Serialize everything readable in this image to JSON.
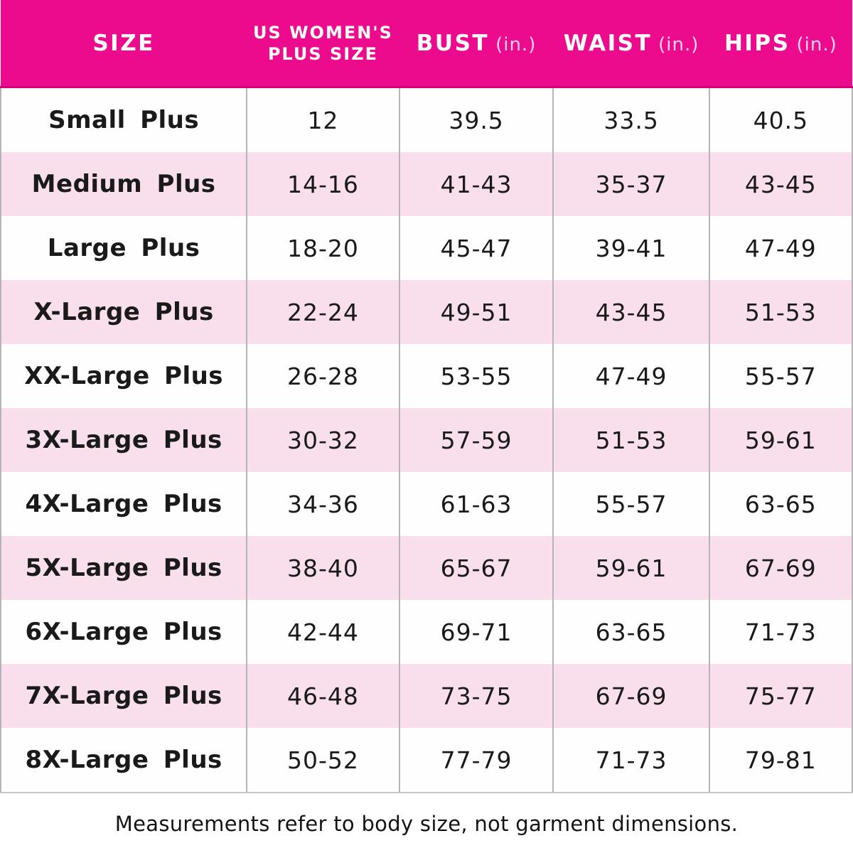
{
  "colors": {
    "header_bg": "#EC0B8C",
    "header_bottom_edge": "#D6017A",
    "header_text": "#FFFFFF",
    "stripe_pink": "#F8DFEB",
    "row_white": "#FEFEFE",
    "body_text": "#1A1A1A",
    "border_gray": "#B5B5B5"
  },
  "header": {
    "columns": [
      {
        "label": "SIZE"
      },
      {
        "line1": "US WOMEN'S",
        "line2": "PLUS SIZE"
      },
      {
        "label": "BUST",
        "unit": "(in.)"
      },
      {
        "label": "WAIST",
        "unit": "(in.)"
      },
      {
        "label": "HIPS",
        "unit": "(in.)"
      }
    ]
  },
  "rows": [
    {
      "size": "Small Plus",
      "us_plus_size": "12",
      "bust": "39.5",
      "waist": "33.5",
      "hips": "40.5"
    },
    {
      "size": "Medium Plus",
      "us_plus_size": "14-16",
      "bust": "41-43",
      "waist": "35-37",
      "hips": "43-45"
    },
    {
      "size": "Large Plus",
      "us_plus_size": "18-20",
      "bust": "45-47",
      "waist": "39-41",
      "hips": "47-49"
    },
    {
      "size": "X-Large Plus",
      "us_plus_size": "22-24",
      "bust": "49-51",
      "waist": "43-45",
      "hips": "51-53"
    },
    {
      "size": "XX-Large Plus",
      "us_plus_size": "26-28",
      "bust": "53-55",
      "waist": "47-49",
      "hips": "55-57"
    },
    {
      "size": "3X-Large Plus",
      "us_plus_size": "30-32",
      "bust": "57-59",
      "waist": "51-53",
      "hips": "59-61"
    },
    {
      "size": "4X-Large Plus",
      "us_plus_size": "34-36",
      "bust": "61-63",
      "waist": "55-57",
      "hips": "63-65"
    },
    {
      "size": "5X-Large Plus",
      "us_plus_size": "38-40",
      "bust": "65-67",
      "waist": "59-61",
      "hips": "67-69"
    },
    {
      "size": "6X-Large Plus",
      "us_plus_size": "42-44",
      "bust": "69-71",
      "waist": "63-65",
      "hips": "71-73"
    },
    {
      "size": "7X-Large Plus",
      "us_plus_size": "46-48",
      "bust": "73-75",
      "waist": "67-69",
      "hips": "75-77"
    },
    {
      "size": "8X-Large Plus",
      "us_plus_size": "50-52",
      "bust": "77-79",
      "waist": "71-73",
      "hips": "79-81"
    }
  ],
  "footnote": "Measurements refer to body size, not garment dimensions.",
  "chart_data": {
    "type": "table",
    "columns": [
      "SIZE",
      "US WOMEN'S PLUS SIZE",
      "BUST (in.)",
      "WAIST (in.)",
      "HIPS (in.)"
    ],
    "rows": [
      [
        "Small Plus",
        "12",
        "39.5",
        "33.5",
        "40.5"
      ],
      [
        "Medium Plus",
        "14-16",
        "41-43",
        "35-37",
        "43-45"
      ],
      [
        "Large Plus",
        "18-20",
        "45-47",
        "39-41",
        "47-49"
      ],
      [
        "X-Large Plus",
        "22-24",
        "49-51",
        "43-45",
        "51-53"
      ],
      [
        "XX-Large Plus",
        "26-28",
        "53-55",
        "47-49",
        "55-57"
      ],
      [
        "3X-Large Plus",
        "30-32",
        "57-59",
        "51-53",
        "59-61"
      ],
      [
        "4X-Large Plus",
        "34-36",
        "61-63",
        "55-57",
        "63-65"
      ],
      [
        "5X-Large Plus",
        "38-40",
        "65-67",
        "59-61",
        "67-69"
      ],
      [
        "6X-Large Plus",
        "42-44",
        "69-71",
        "63-65",
        "71-73"
      ],
      [
        "7X-Large Plus",
        "46-48",
        "73-75",
        "67-69",
        "75-77"
      ],
      [
        "8X-Large Plus",
        "50-52",
        "77-79",
        "71-73",
        "79-81"
      ]
    ],
    "footnote": "Measurements refer to body size, not garment dimensions."
  }
}
